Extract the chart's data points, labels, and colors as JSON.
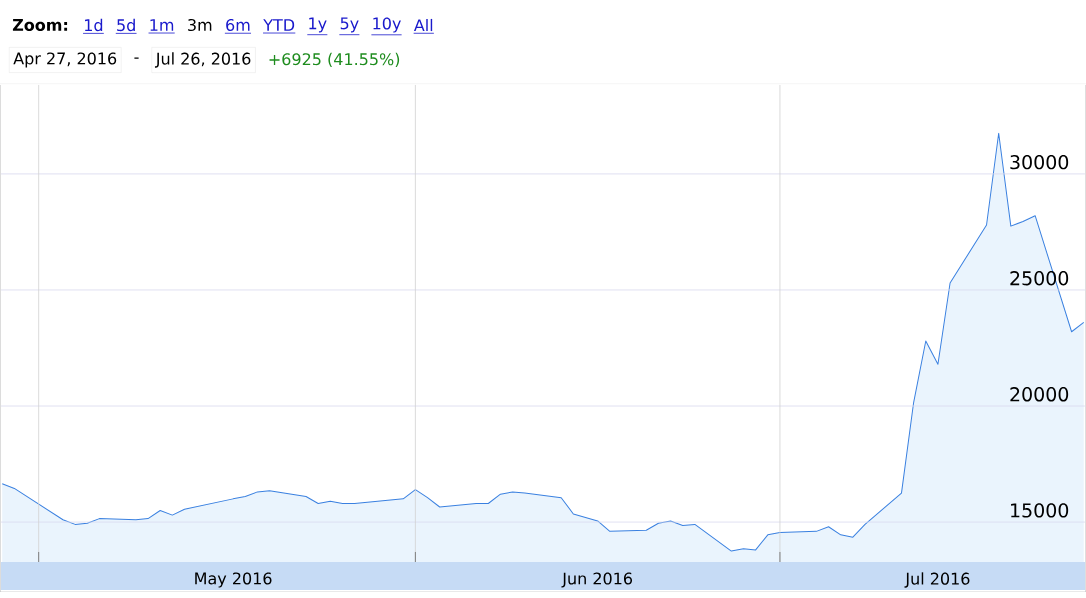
{
  "chart_data": {
    "type": "area",
    "color": "#3a80e0",
    "x": [
      "2016-04-28",
      "2016-04-29",
      "2016-05-03",
      "2016-05-04",
      "2016-05-05",
      "2016-05-06",
      "2016-05-09",
      "2016-05-10",
      "2016-05-11",
      "2016-05-12",
      "2016-05-13",
      "2016-05-17",
      "2016-05-18",
      "2016-05-19",
      "2016-05-20",
      "2016-05-23",
      "2016-05-24",
      "2016-05-25",
      "2016-05-26",
      "2016-05-27",
      "2016-05-31",
      "2016-06-01",
      "2016-06-02",
      "2016-06-03",
      "2016-06-06",
      "2016-06-07",
      "2016-06-08",
      "2016-06-09",
      "2016-06-10",
      "2016-06-13",
      "2016-06-14",
      "2016-06-15",
      "2016-06-16",
      "2016-06-17",
      "2016-06-20",
      "2016-06-21",
      "2016-06-22",
      "2016-06-23",
      "2016-06-24",
      "2016-06-27",
      "2016-06-28",
      "2016-06-29",
      "2016-06-30",
      "2016-07-01",
      "2016-07-04",
      "2016-07-05",
      "2016-07-06",
      "2016-07-07",
      "2016-07-08",
      "2016-07-11",
      "2016-07-12",
      "2016-07-13",
      "2016-07-14",
      "2016-07-15",
      "2016-07-18",
      "2016-07-19",
      "2016-07-20",
      "2016-07-21",
      "2016-07-22",
      "2016-07-25",
      "2016-07-26"
    ],
    "values": [
      16650,
      16450,
      15100,
      14900,
      14950,
      15150,
      15100,
      15150,
      15500,
      15300,
      15550,
      16000,
      16100,
      16300,
      16350,
      16100,
      15800,
      15900,
      15800,
      15800,
      16000,
      16400,
      16050,
      15650,
      15800,
      15800,
      16200,
      16300,
      16250,
      16050,
      15350,
      15200,
      15050,
      14600,
      14650,
      14950,
      15050,
      14850,
      14900,
      13750,
      13850,
      13800,
      14450,
      14550,
      14600,
      14800,
      14450,
      14350,
      14900,
      16250,
      20150,
      22800,
      21800,
      25300,
      27800,
      31750,
      27750,
      27950,
      28200,
      23200,
      23600
    ],
    "xlim": [
      "2016-04-28",
      "2016-07-26"
    ],
    "xticks": [
      {
        "value": "2016-05-01",
        "label": null
      },
      {
        "value": "2016-05-17",
        "label": "May 2016"
      },
      {
        "value": "2016-06-01",
        "label": null
      },
      {
        "value": "2016-06-16",
        "label": "Jun 2016"
      },
      {
        "value": "2016-07-01",
        "label": null
      },
      {
        "value": "2016-07-14",
        "label": "Jul 2016"
      }
    ],
    "ylim": [
      13280,
      33830
    ],
    "yticks": [
      15000,
      20000,
      25000,
      30000
    ],
    "grid": true,
    "annotations": [
      "Zoom:",
      "1d",
      "5d",
      "1m",
      "3m",
      "6m",
      "YTD",
      "1y",
      "5y",
      "10y",
      "All",
      "Apr 27, 2016",
      "-",
      "Jul 26, 2016",
      "+6925 (41.55%)"
    ]
  }
}
